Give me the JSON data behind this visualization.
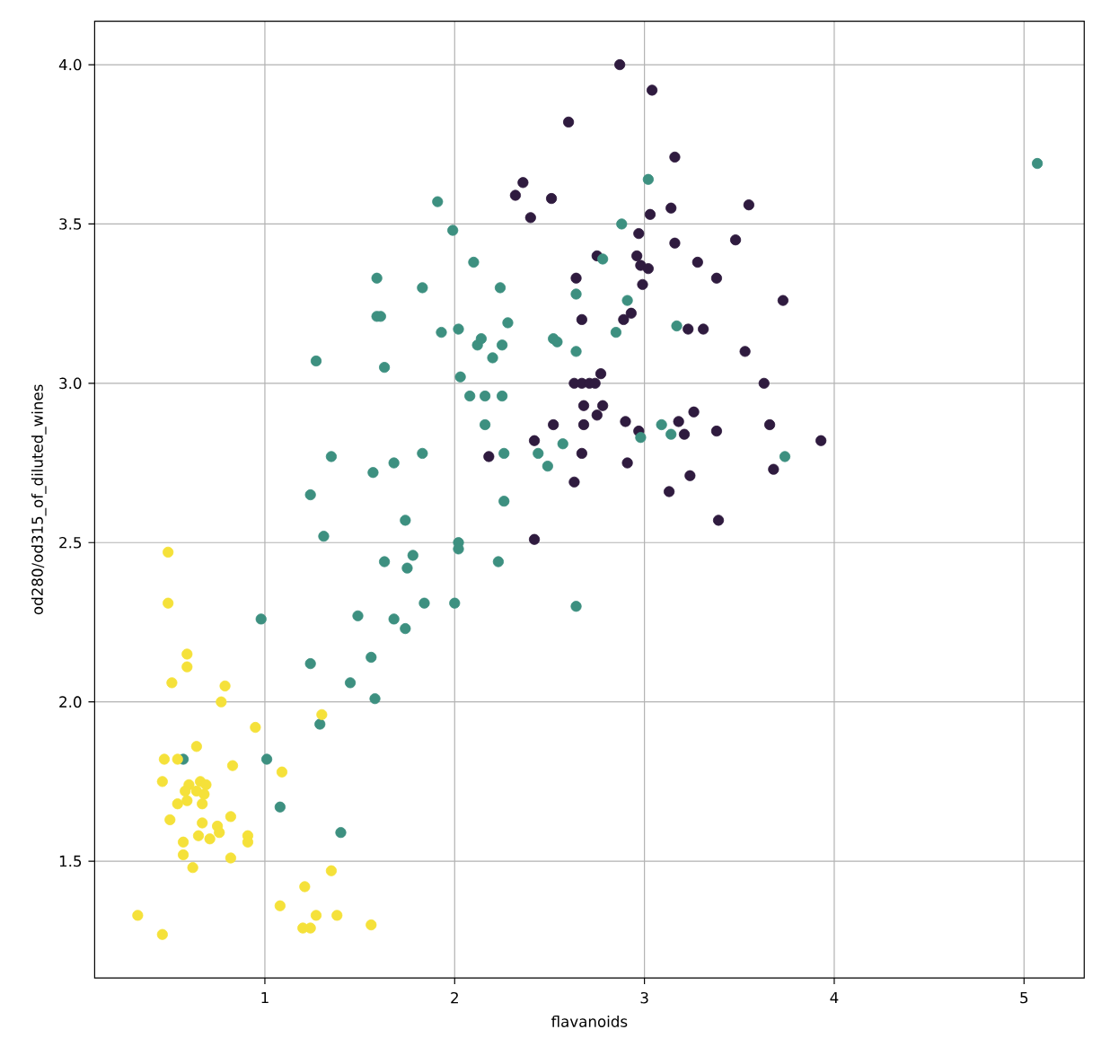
{
  "chart_data": {
    "type": "scatter",
    "xlabel": "flavanoids",
    "ylabel": "od280/od315_of_diluted_wines",
    "xlim": [
      0.103,
      5.317
    ],
    "ylim": [
      1.1335,
      4.1365
    ],
    "xticks": [
      1,
      2,
      3,
      4,
      5
    ],
    "yticks": [
      {
        "value": 1.5,
        "label": "1.5"
      },
      {
        "value": 2,
        "label": "2.0"
      },
      {
        "value": 2.5,
        "label": "2.5"
      },
      {
        "value": 3,
        "label": "3.0"
      },
      {
        "value": 3.5,
        "label": "3.5"
      },
      {
        "value": 4,
        "label": "4.0"
      }
    ],
    "grid": true,
    "marker": "circle",
    "series": [
      {
        "color": "#2f1b3f",
        "x": [
          3.16,
          2.36,
          2.32,
          2.51,
          2.4,
          3.03,
          3.14,
          2.97,
          3.16,
          2.75,
          2.96,
          2.98,
          3.02,
          2.99,
          2.64,
          2.67,
          2.89,
          2.93,
          2.77,
          2.63,
          2.67,
          2.71,
          2.74,
          2.68,
          2.78,
          2.75,
          2.68,
          2.52,
          2.42,
          2.18,
          2.67,
          2.63,
          2.91,
          2.9,
          2.97,
          3.18,
          3.21,
          3.13,
          2.87,
          3.04,
          2.6,
          3.55,
          3.48,
          3.28,
          3.38,
          3.73,
          3.23,
          3.31,
          3.53,
          3.63,
          3.26,
          3.38,
          3.66,
          3.93,
          3.24,
          3.68,
          3.39,
          2.42
        ],
        "values": [
          3.71,
          3.63,
          3.59,
          3.58,
          3.52,
          3.53,
          3.55,
          3.47,
          3.44,
          3.4,
          3.4,
          3.37,
          3.36,
          3.31,
          3.33,
          3.2,
          3.2,
          3.22,
          3.03,
          3.0,
          3.0,
          3.0,
          3.0,
          2.93,
          2.93,
          2.9,
          2.87,
          2.87,
          2.82,
          2.77,
          2.78,
          2.69,
          2.75,
          2.88,
          2.85,
          2.88,
          2.84,
          2.66,
          4.0,
          3.92,
          3.82,
          3.56,
          3.45,
          3.38,
          3.33,
          3.26,
          3.17,
          3.17,
          3.1,
          3.0,
          2.91,
          2.85,
          2.87,
          2.82,
          2.71,
          2.73,
          2.57,
          2.51
        ]
      },
      {
        "color": "#3d9080",
        "x": [
          1.74,
          1.31,
          1.78,
          1.63,
          1.75,
          1.84,
          0.98,
          1.49,
          1.68,
          1.74,
          1.56,
          1.24,
          1.45,
          1.58,
          1.29,
          1.01,
          1.08,
          1.4,
          0.57,
          1.93,
          2.02,
          2.28,
          2.12,
          2.14,
          2.25,
          2.2,
          2.52,
          2.54,
          2.64,
          1.27,
          1.63,
          2.03,
          2.08,
          2.16,
          2.25,
          2.16,
          2.26,
          2.44,
          2.49,
          2.57,
          1.35,
          1.57,
          1.68,
          1.83,
          1.24,
          2.26,
          2.02,
          2.02,
          2.23,
          2.64,
          2.0,
          1.91,
          1.99,
          2.1,
          1.59,
          1.83,
          2.24,
          1.59,
          1.61,
          3.02,
          2.88,
          2.78,
          2.64,
          2.91,
          2.85,
          3.17,
          3.09,
          2.98,
          3.14,
          3.74,
          5.07
        ],
        "values": [
          2.57,
          2.52,
          2.46,
          2.44,
          2.42,
          2.31,
          2.26,
          2.27,
          2.26,
          2.23,
          2.14,
          2.12,
          2.06,
          2.01,
          1.93,
          1.82,
          1.67,
          1.59,
          1.82,
          3.16,
          3.17,
          3.19,
          3.12,
          3.14,
          3.12,
          3.08,
          3.14,
          3.13,
          3.1,
          3.07,
          3.05,
          3.02,
          2.96,
          2.96,
          2.96,
          2.87,
          2.78,
          2.78,
          2.74,
          2.81,
          2.77,
          2.72,
          2.75,
          2.78,
          2.65,
          2.63,
          2.5,
          2.48,
          2.44,
          2.3,
          2.31,
          3.57,
          3.48,
          3.38,
          3.33,
          3.3,
          3.3,
          3.21,
          3.21,
          3.64,
          3.5,
          3.39,
          3.28,
          3.26,
          3.16,
          3.18,
          2.87,
          2.83,
          2.84,
          2.77,
          3.69
        ]
      },
      {
        "color": "#f5e13a",
        "x": [
          0.49,
          0.49,
          0.59,
          0.59,
          0.51,
          0.79,
          0.77,
          1.3,
          0.95,
          0.64,
          0.47,
          0.54,
          0.83,
          1.09,
          0.46,
          0.6,
          0.66,
          0.69,
          0.58,
          0.64,
          0.68,
          0.59,
          0.54,
          0.67,
          0.5,
          0.67,
          0.75,
          0.82,
          0.65,
          0.71,
          0.76,
          0.91,
          0.91,
          0.57,
          0.57,
          0.82,
          0.62,
          1.35,
          1.21,
          1.08,
          0.33,
          1.27,
          1.38,
          1.56,
          1.2,
          1.24,
          0.46
        ],
        "values": [
          2.47,
          2.31,
          2.15,
          2.11,
          2.06,
          2.05,
          2.0,
          1.96,
          1.92,
          1.86,
          1.82,
          1.82,
          1.8,
          1.78,
          1.75,
          1.74,
          1.75,
          1.74,
          1.72,
          1.72,
          1.71,
          1.69,
          1.68,
          1.68,
          1.63,
          1.62,
          1.61,
          1.64,
          1.58,
          1.57,
          1.59,
          1.58,
          1.56,
          1.56,
          1.52,
          1.51,
          1.48,
          1.47,
          1.42,
          1.36,
          1.33,
          1.33,
          1.33,
          1.3,
          1.29,
          1.29,
          1.27
        ]
      }
    ]
  }
}
